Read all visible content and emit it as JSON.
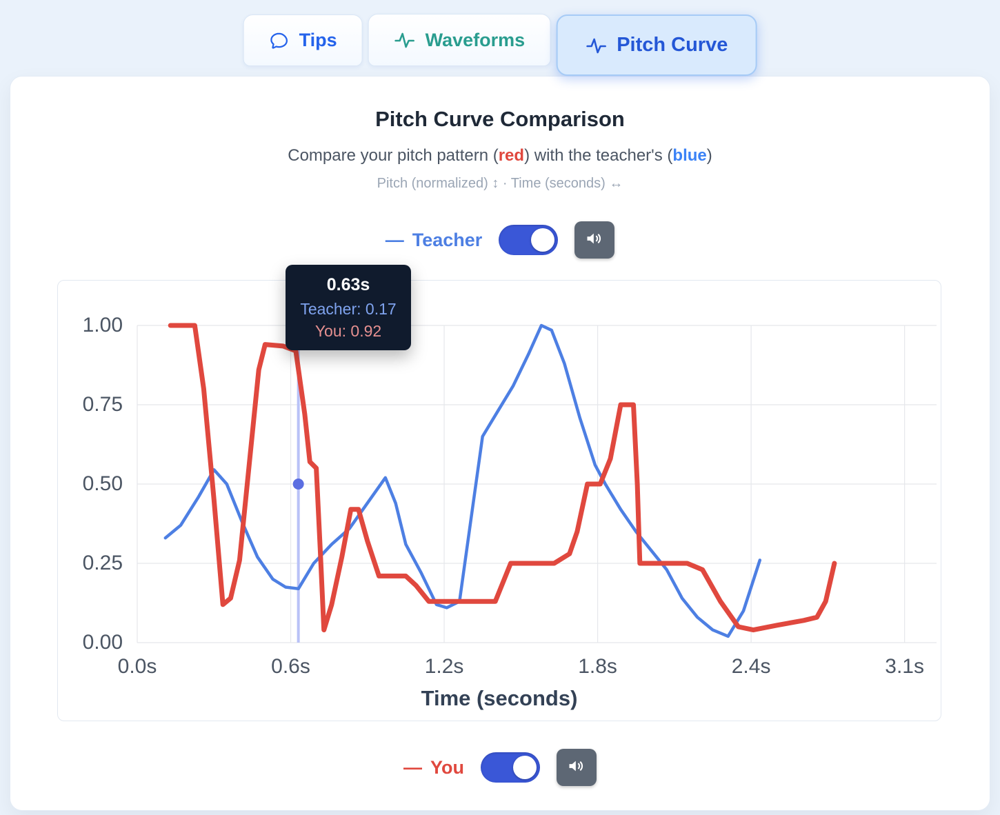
{
  "tabs": [
    {
      "label": "Tips"
    },
    {
      "label": "Waveforms"
    },
    {
      "label": "Pitch Curve"
    }
  ],
  "header": {
    "title": "Pitch Curve Comparison",
    "subtitle_prefix": "Compare your pitch pattern (",
    "subtitle_red": "red",
    "subtitle_mid": ") with the teacher's (",
    "subtitle_blue": "blue",
    "subtitle_suffix": ")",
    "hint": "Pitch (normalized) ↕  ·  Time (seconds) ↔"
  },
  "teacher_row": {
    "dash": "—",
    "label": "Teacher",
    "toggle_on": true
  },
  "you_row": {
    "dash": "—",
    "label": "You",
    "toggle_on": true
  },
  "tooltip": {
    "time": "0.63s",
    "teacher_label": "Teacher:",
    "teacher_value": "0.17",
    "you_label": "You:",
    "you_value": "0.92"
  },
  "colors": {
    "teacher_line": "#4d7fe3",
    "you_line": "#e0483e",
    "toggle_on": "#3a57d7",
    "speaker_button": "#5d6774",
    "tab_active_bg": "#d9eafd",
    "red_word": "#e0473d",
    "blue_word": "#3b82f6"
  },
  "chart_data": {
    "type": "line",
    "title": "Pitch Curve Comparison",
    "xlabel": "Time (seconds)",
    "ylabel": "Pitch (normalized)",
    "ylim": [
      0,
      1
    ],
    "grid": true,
    "grid_color": "#e5e7eb",
    "x_ticks": [
      "0.0s",
      "0.6s",
      "1.2s",
      "1.8s",
      "2.4s",
      "3.1s"
    ],
    "x_tick_values": [
      0,
      0.6,
      1.2,
      1.8,
      2.4,
      3.1
    ],
    "y_ticks": [
      "0.00",
      "0.25",
      "0.50",
      "0.75",
      "1.00"
    ],
    "legend_position": "above-and-below",
    "crosshair": {
      "t": 0.63,
      "dot_value": 0.5,
      "line_color": "#b9c2f7",
      "dot_color": "#5b6ee1"
    },
    "series": [
      {
        "name": "Teacher",
        "color": "#4d7fe3",
        "width": 4.5,
        "points": [
          [
            0.11,
            0.33
          ],
          [
            0.17,
            0.37
          ],
          [
            0.24,
            0.46
          ],
          [
            0.3,
            0.545
          ],
          [
            0.35,
            0.5
          ],
          [
            0.41,
            0.38
          ],
          [
            0.47,
            0.27
          ],
          [
            0.53,
            0.2
          ],
          [
            0.58,
            0.175
          ],
          [
            0.63,
            0.17
          ],
          [
            0.69,
            0.25
          ],
          [
            0.76,
            0.31
          ],
          [
            0.83,
            0.36
          ],
          [
            0.9,
            0.44
          ],
          [
            0.97,
            0.52
          ],
          [
            1.01,
            0.44
          ],
          [
            1.05,
            0.31
          ],
          [
            1.11,
            0.22
          ],
          [
            1.17,
            0.12
          ],
          [
            1.21,
            0.11
          ],
          [
            1.26,
            0.13
          ],
          [
            1.31,
            0.42
          ],
          [
            1.35,
            0.65
          ],
          [
            1.41,
            0.73
          ],
          [
            1.47,
            0.81
          ],
          [
            1.53,
            0.91
          ],
          [
            1.58,
            1.0
          ],
          [
            1.62,
            0.985
          ],
          [
            1.67,
            0.88
          ],
          [
            1.73,
            0.71
          ],
          [
            1.79,
            0.56
          ],
          [
            1.83,
            0.5
          ],
          [
            1.89,
            0.42
          ],
          [
            1.95,
            0.35
          ],
          [
            2.02,
            0.28
          ],
          [
            2.07,
            0.23
          ],
          [
            2.13,
            0.14
          ],
          [
            2.19,
            0.08
          ],
          [
            2.25,
            0.04
          ],
          [
            2.31,
            0.02
          ],
          [
            2.37,
            0.1
          ],
          [
            2.44,
            0.26
          ]
        ]
      },
      {
        "name": "You",
        "color": "#e0483e",
        "width": 7,
        "points": [
          [
            0.13,
            1.0
          ],
          [
            0.225,
            1.0
          ],
          [
            0.26,
            0.8
          ],
          [
            0.3,
            0.45
          ],
          [
            0.335,
            0.12
          ],
          [
            0.365,
            0.14
          ],
          [
            0.4,
            0.26
          ],
          [
            0.44,
            0.58
          ],
          [
            0.475,
            0.86
          ],
          [
            0.5,
            0.94
          ],
          [
            0.57,
            0.935
          ],
          [
            0.62,
            0.92
          ],
          [
            0.655,
            0.72
          ],
          [
            0.675,
            0.57
          ],
          [
            0.7,
            0.55
          ],
          [
            0.715,
            0.3
          ],
          [
            0.73,
            0.04
          ],
          [
            0.76,
            0.12
          ],
          [
            0.8,
            0.27
          ],
          [
            0.835,
            0.42
          ],
          [
            0.865,
            0.42
          ],
          [
            0.9,
            0.32
          ],
          [
            0.945,
            0.21
          ],
          [
            1.05,
            0.21
          ],
          [
            1.09,
            0.18
          ],
          [
            1.14,
            0.13
          ],
          [
            1.4,
            0.13
          ],
          [
            1.46,
            0.25
          ],
          [
            1.63,
            0.25
          ],
          [
            1.69,
            0.28
          ],
          [
            1.72,
            0.35
          ],
          [
            1.76,
            0.5
          ],
          [
            1.81,
            0.5
          ],
          [
            1.85,
            0.58
          ],
          [
            1.89,
            0.75
          ],
          [
            1.94,
            0.75
          ],
          [
            1.955,
            0.5
          ],
          [
            1.965,
            0.25
          ],
          [
            2.15,
            0.25
          ],
          [
            2.21,
            0.23
          ],
          [
            2.28,
            0.13
          ],
          [
            2.35,
            0.05
          ],
          [
            2.41,
            0.04
          ],
          [
            2.52,
            0.055
          ],
          [
            2.64,
            0.07
          ],
          [
            2.7,
            0.08
          ],
          [
            2.74,
            0.13
          ],
          [
            2.78,
            0.25
          ]
        ]
      }
    ]
  }
}
